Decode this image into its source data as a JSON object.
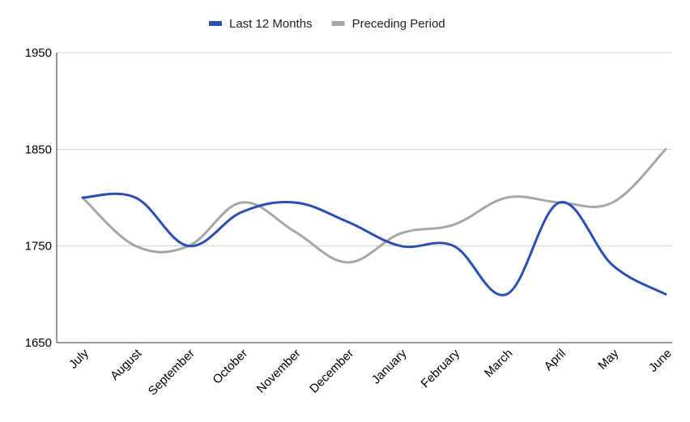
{
  "chart_data": {
    "type": "line",
    "title": "",
    "xlabel": "",
    "ylabel": "",
    "categories": [
      "July",
      "August",
      "September",
      "October",
      "November",
      "December",
      "January",
      "February",
      "March",
      "April",
      "May",
      "June"
    ],
    "series": [
      {
        "name": "Last 12 Months",
        "color": "#2a4fb0",
        "values": [
          1800,
          1800,
          1750,
          1785,
          1795,
          1775,
          1750,
          1750,
          1700,
          1795,
          1730,
          1700
        ]
      },
      {
        "name": "Preceding Period",
        "color": "#a6a6a6",
        "values": [
          1800,
          1750,
          1750,
          1795,
          1765,
          1733,
          1763,
          1772,
          1800,
          1795,
          1795,
          1850
        ]
      }
    ],
    "ylim": [
      1650,
      1950
    ],
    "yticks": [
      1650,
      1750,
      1850,
      1950
    ],
    "grid": true,
    "legend": "top-center"
  }
}
